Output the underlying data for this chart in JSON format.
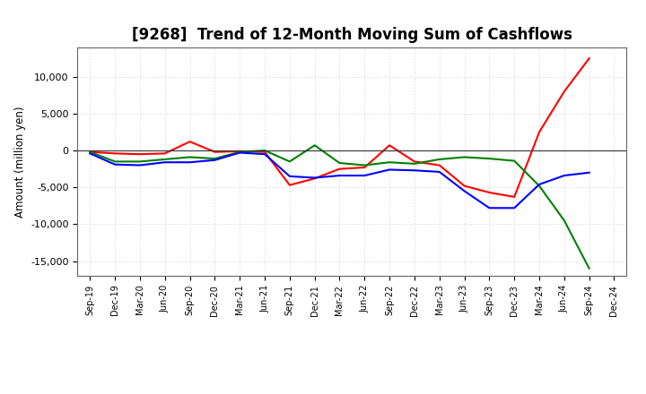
{
  "title": "[9268]  Trend of 12-Month Moving Sum of Cashflows",
  "ylabel": "Amount (million yen)",
  "ylim": [
    -17000,
    14000
  ],
  "yticks": [
    -15000,
    -10000,
    -5000,
    0,
    5000,
    10000
  ],
  "background_color": "#ffffff",
  "plot_bg_color": "#ffffff",
  "grid_color": "#aaaaaa",
  "x_labels": [
    "Sep-19",
    "Dec-19",
    "Mar-20",
    "Jun-20",
    "Sep-20",
    "Dec-20",
    "Mar-21",
    "Jun-21",
    "Sep-21",
    "Dec-21",
    "Mar-22",
    "Jun-22",
    "Sep-22",
    "Dec-22",
    "Mar-23",
    "Jun-23",
    "Sep-23",
    "Dec-23",
    "Mar-24",
    "Jun-24",
    "Sep-24",
    "Dec-24"
  ],
  "operating": [
    -200,
    -400,
    -500,
    -400,
    1200,
    -200,
    -100,
    -200,
    -4700,
    -3800,
    -2500,
    -2300,
    700,
    -1500,
    -2000,
    -4800,
    -5700,
    -6300,
    2500,
    8000,
    12500,
    null
  ],
  "investing": [
    -200,
    -1500,
    -1500,
    -1200,
    -900,
    -1100,
    -200,
    0,
    -1500,
    700,
    -1700,
    -2000,
    -1600,
    -1800,
    -1200,
    -900,
    -1100,
    -1400,
    -4800,
    -9500,
    -16000,
    null
  ],
  "free": [
    -400,
    -1900,
    -2000,
    -1600,
    -1600,
    -1300,
    -300,
    -500,
    -3500,
    -3700,
    -3400,
    -3400,
    -2600,
    -2700,
    -2900,
    -5500,
    -7800,
    -7800,
    -4600,
    -3400,
    -3000,
    null
  ],
  "operating_color": "#ff0000",
  "investing_color": "#008000",
  "free_color": "#0000ff",
  "line_width": 1.5,
  "title_fontsize": 12
}
